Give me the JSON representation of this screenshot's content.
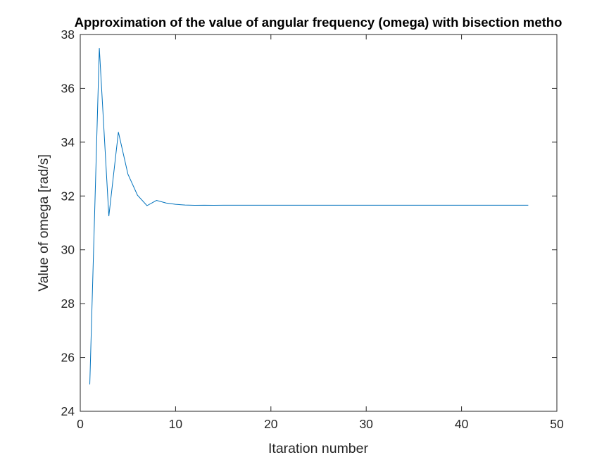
{
  "chart_data": {
    "type": "line",
    "title": "Approximation of the value of angular frequency (omega) with bisection metho",
    "xlabel": "Itaration number",
    "ylabel": "Value of omega [rad/s]",
    "xlim": [
      0,
      50
    ],
    "ylim": [
      24,
      38
    ],
    "xticks": [
      0,
      10,
      20,
      30,
      40,
      50
    ],
    "yticks": [
      24,
      26,
      28,
      30,
      32,
      34,
      36,
      38
    ],
    "xtick_labels": [
      "0",
      "10",
      "20",
      "30",
      "40",
      "50"
    ],
    "ytick_labels": [
      "24",
      "26",
      "28",
      "30",
      "32",
      "34",
      "36",
      "38"
    ],
    "grid": false,
    "box": true,
    "line_color": "#0072BD",
    "axis_color": "#262626",
    "series": [
      {
        "x": [
          1,
          2,
          3,
          4,
          5,
          6,
          7,
          8,
          9,
          10,
          11,
          12,
          13,
          14,
          15,
          16,
          17,
          18,
          19,
          20,
          21,
          22,
          23,
          24,
          25,
          26,
          27,
          28,
          29,
          30,
          31,
          32,
          33,
          34,
          35,
          36,
          37,
          38,
          39,
          40,
          41,
          42,
          43,
          44,
          45,
          46,
          47
        ],
        "y": [
          25.0,
          37.5,
          31.25,
          34.375,
          32.8125,
          32.03125,
          31.640625,
          31.8359375,
          31.73828,
          31.68945,
          31.66504,
          31.65283,
          31.65894,
          31.65588,
          31.65741,
          31.65665,
          31.65665,
          31.65665,
          31.65665,
          31.65665,
          31.65665,
          31.65665,
          31.65665,
          31.65665,
          31.65665,
          31.65665,
          31.65665,
          31.65665,
          31.65665,
          31.65665,
          31.65665,
          31.65665,
          31.65665,
          31.65665,
          31.65665,
          31.65665,
          31.65665,
          31.65665,
          31.65665,
          31.65665,
          31.65665,
          31.65665,
          31.65665,
          31.65665,
          31.65665,
          31.65665,
          31.65665
        ]
      }
    ]
  }
}
